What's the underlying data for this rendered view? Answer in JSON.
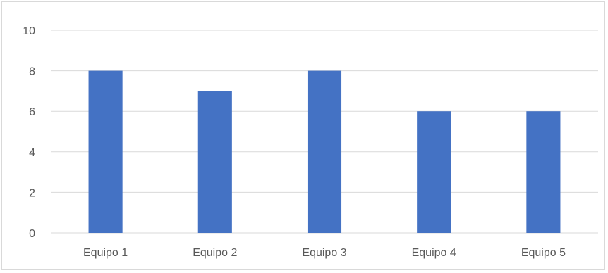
{
  "chart_data": {
    "type": "bar",
    "title": "",
    "xlabel": "",
    "ylabel": "",
    "categories": [
      "Equipo 1",
      "Equipo 2",
      "Equipo 3",
      "Equipo 4",
      "Equipo 5"
    ],
    "values": [
      8,
      7,
      8,
      6,
      6
    ],
    "ylim": [
      0,
      10
    ],
    "yticks": [
      "0",
      "2",
      "4",
      "6",
      "8",
      "10"
    ],
    "grid": true,
    "legend": "none",
    "colors": {
      "bar": "#4472c4",
      "gridline": "#d9d9d9",
      "tick_text": "#595959",
      "border": "#d9d9d9"
    }
  }
}
